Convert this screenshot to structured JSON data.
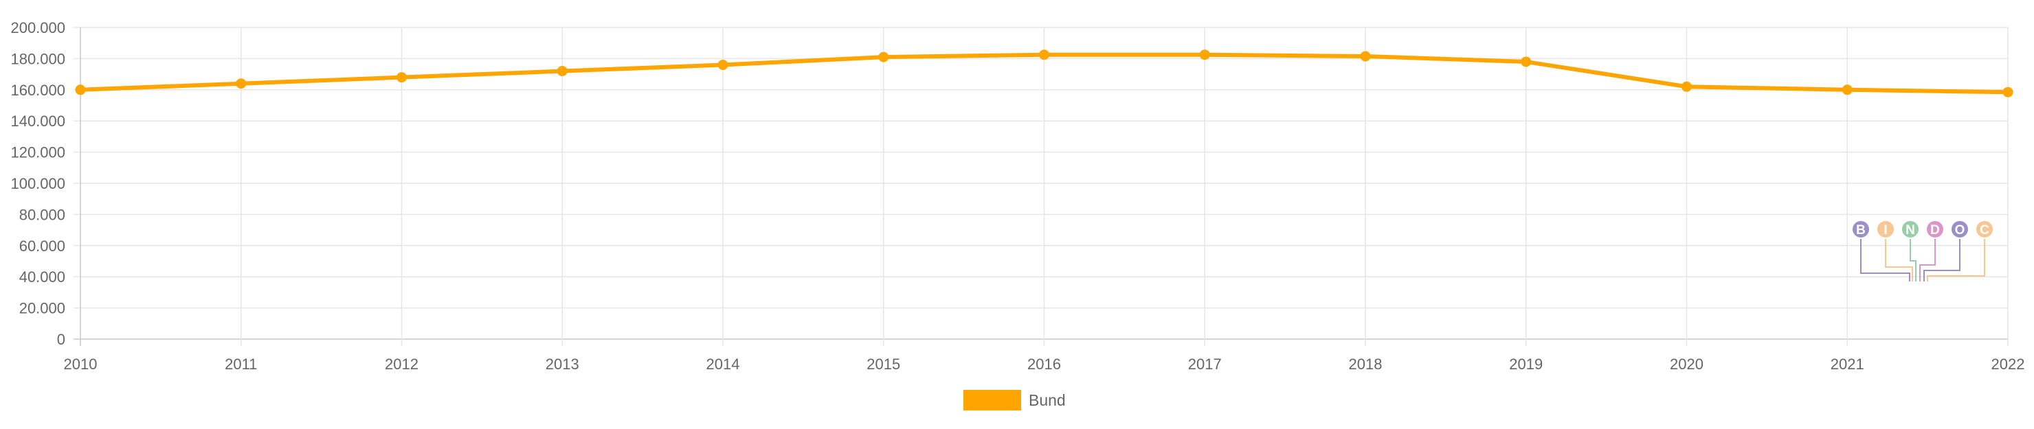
{
  "chart_data": {
    "type": "line",
    "categories": [
      "2010",
      "2011",
      "2012",
      "2013",
      "2014",
      "2015",
      "2016",
      "2017",
      "2018",
      "2019",
      "2020",
      "2021",
      "2022"
    ],
    "series": [
      {
        "name": "Bund",
        "color": "#ffa500",
        "values": [
          160000,
          164000,
          168000,
          172000,
          176000,
          181000,
          182500,
          182500,
          181500,
          178000,
          162000,
          160000,
          158500
        ]
      }
    ],
    "yticks": [
      "0",
      "20.000",
      "40.000",
      "60.000",
      "80.000",
      "100.000",
      "120.000",
      "140.000",
      "160.000",
      "180.000",
      "200.000"
    ],
    "ylim": [
      0,
      200000
    ],
    "grid": true,
    "legend_position": "bottom-center"
  },
  "watermark": {
    "letters": [
      "B",
      "I",
      "N",
      "D",
      "O",
      "C"
    ],
    "colors": [
      "#9b8fc9",
      "#f7c796",
      "#98cfa6",
      "#d996c9",
      "#9b8fc9",
      "#f7c796"
    ]
  }
}
